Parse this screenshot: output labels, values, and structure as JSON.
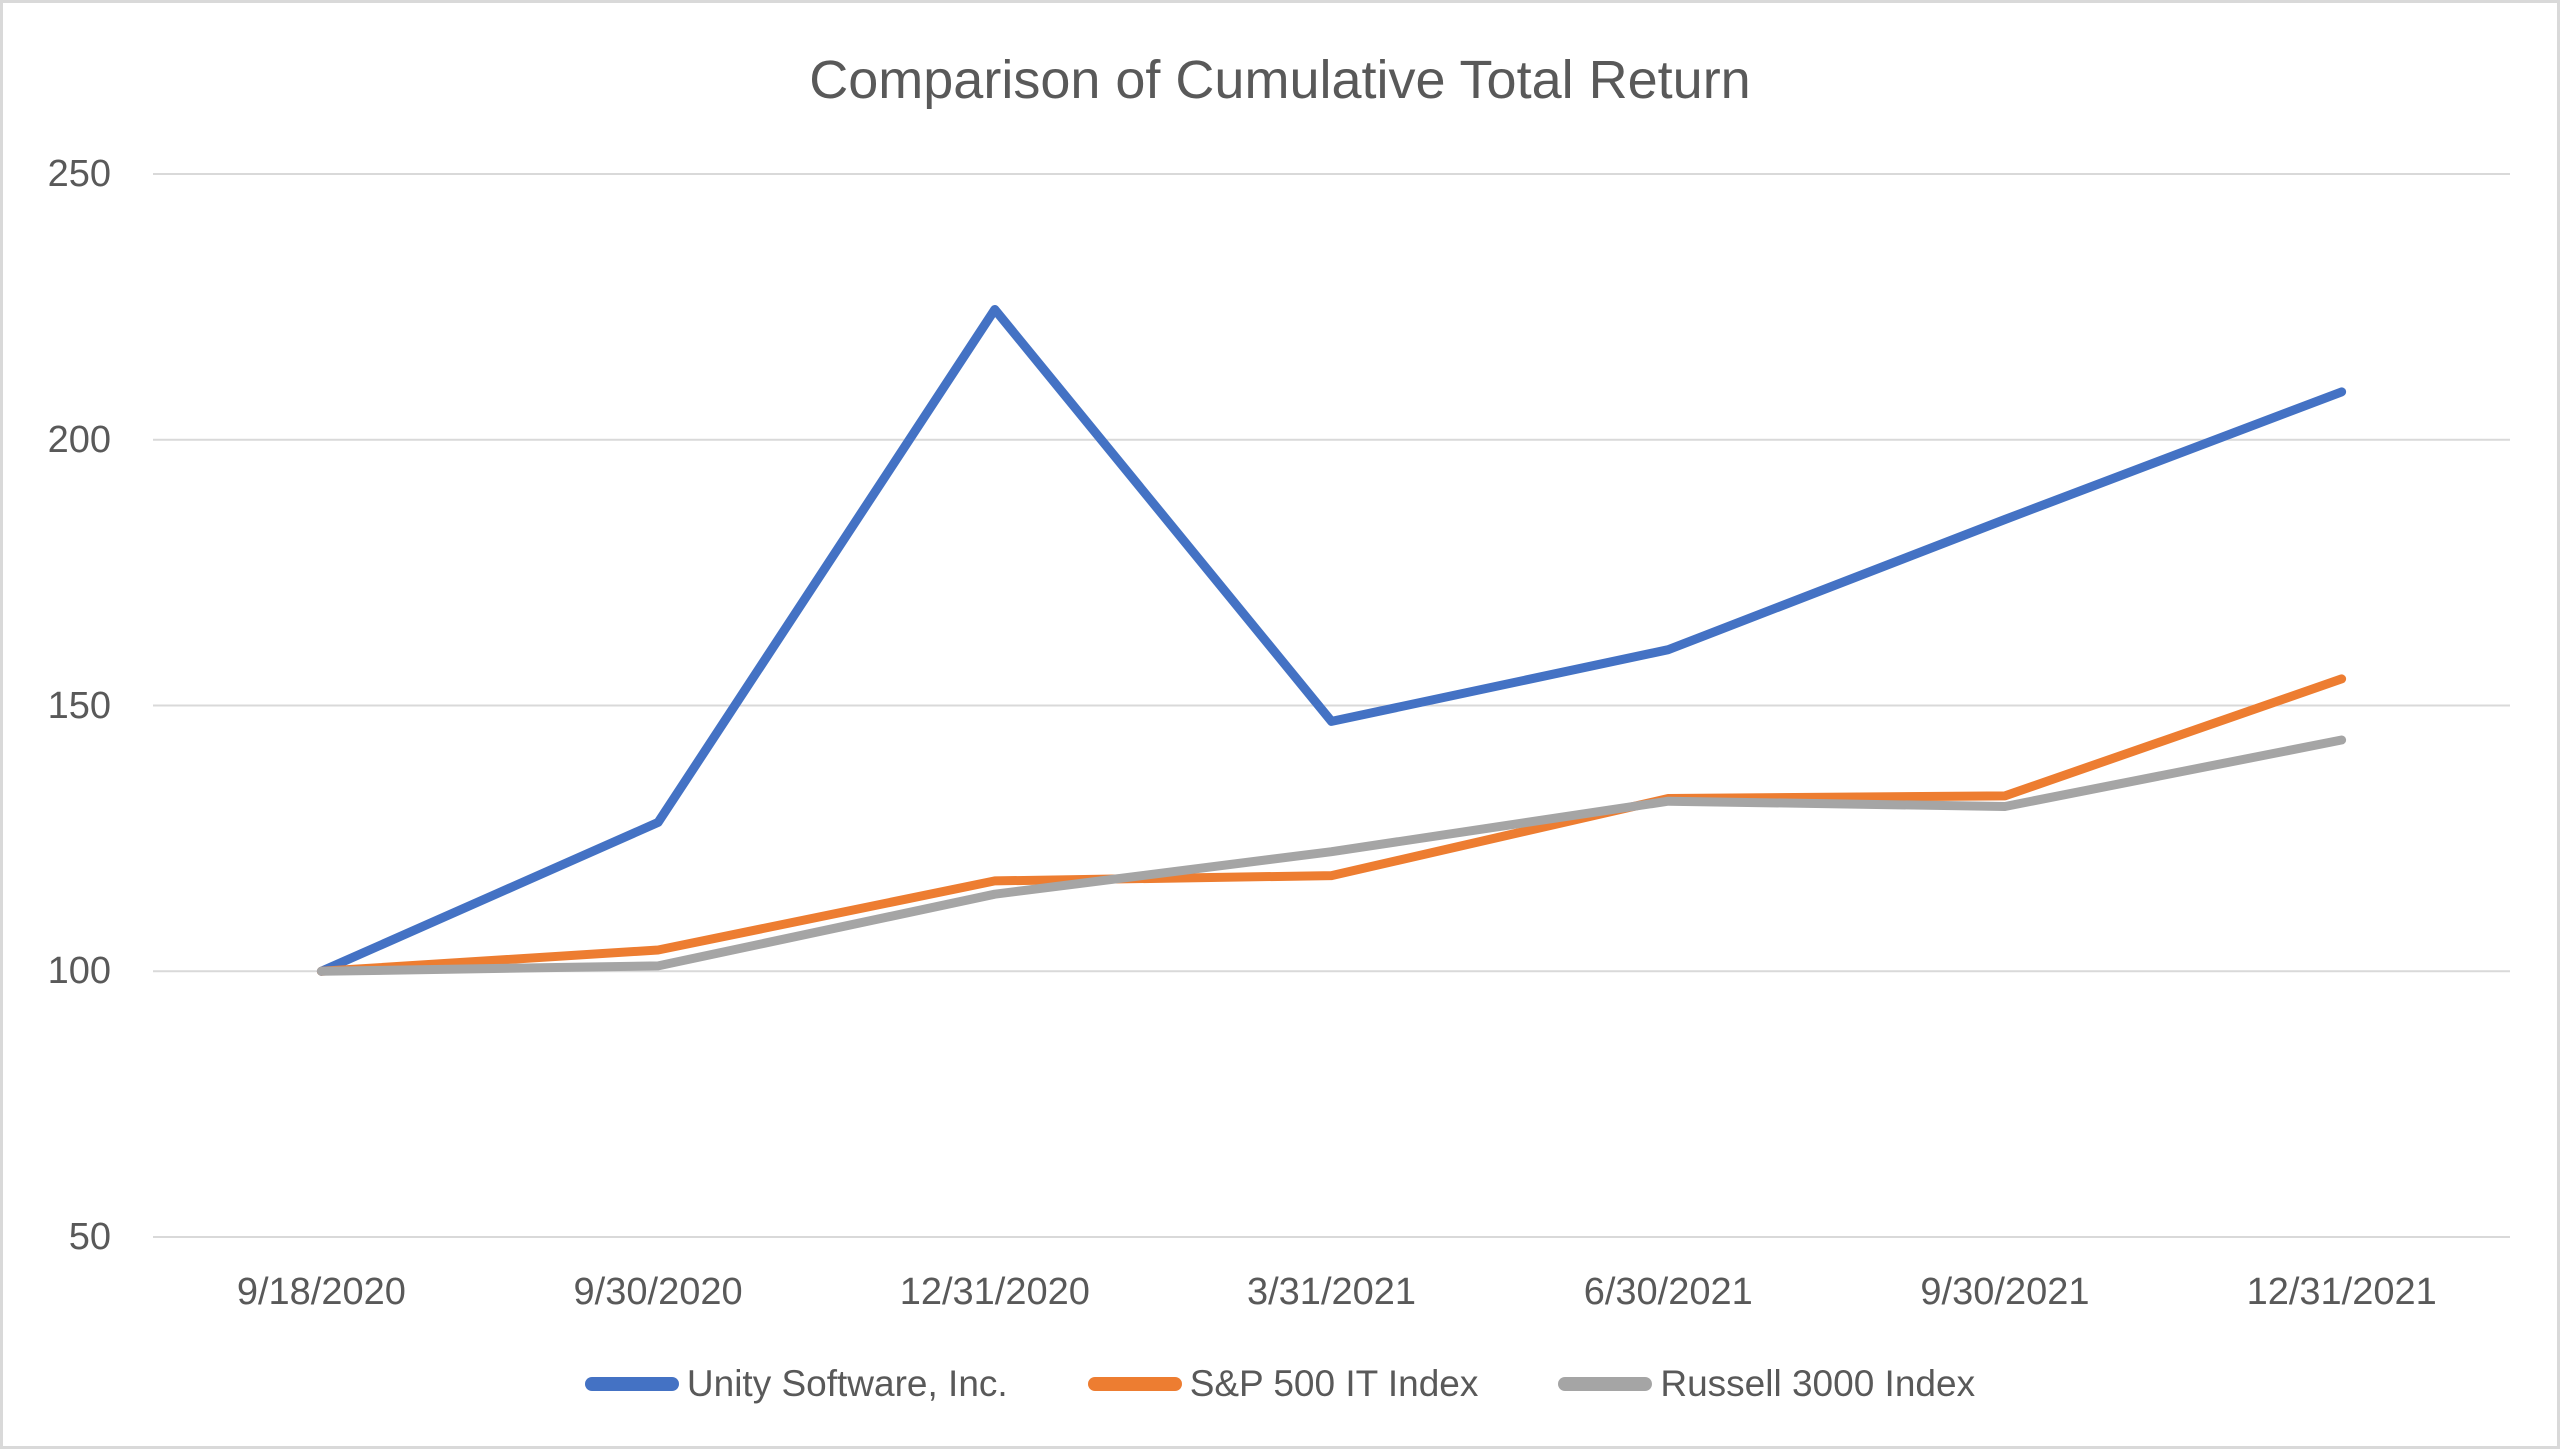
{
  "title": "Comparison of Cumulative Total Return",
  "colors": {
    "background": "#FFFFFF",
    "canvas_border": "#D9D9D9",
    "gridline": "#D9D9D9",
    "text": "#595959",
    "unity_blue": "#4472C4",
    "sp500_orange": "#ED7D31",
    "russell_gray": "#A5A5A5"
  },
  "chart_data": {
    "type": "line",
    "title": "Comparison of Cumulative Total Return",
    "categories": [
      "9/18/2020",
      "9/30/2020",
      "12/31/2020",
      "3/31/2021",
      "6/30/2021",
      "9/30/2021",
      "12/31/2021"
    ],
    "series": [
      {
        "name": "Unity Software, Inc.",
        "color": "#4472C4",
        "values": [
          100,
          128,
          224.5,
          147,
          160.5,
          185,
          209
        ]
      },
      {
        "name": "S&P 500 IT Index",
        "color": "#ED7D31",
        "values": [
          100,
          104,
          117,
          118,
          132.5,
          133,
          155
        ]
      },
      {
        "name": "Russell 3000 Index",
        "color": "#A5A5A5",
        "values": [
          100,
          101,
          114.5,
          122.5,
          132,
          131,
          143.5
        ]
      }
    ],
    "xlabel": "",
    "ylabel": "",
    "ylim": [
      50,
      250
    ],
    "yticks": [
      250,
      200,
      150,
      100,
      50
    ],
    "grid": "horizontal-only",
    "legend_position": "bottom-center"
  }
}
